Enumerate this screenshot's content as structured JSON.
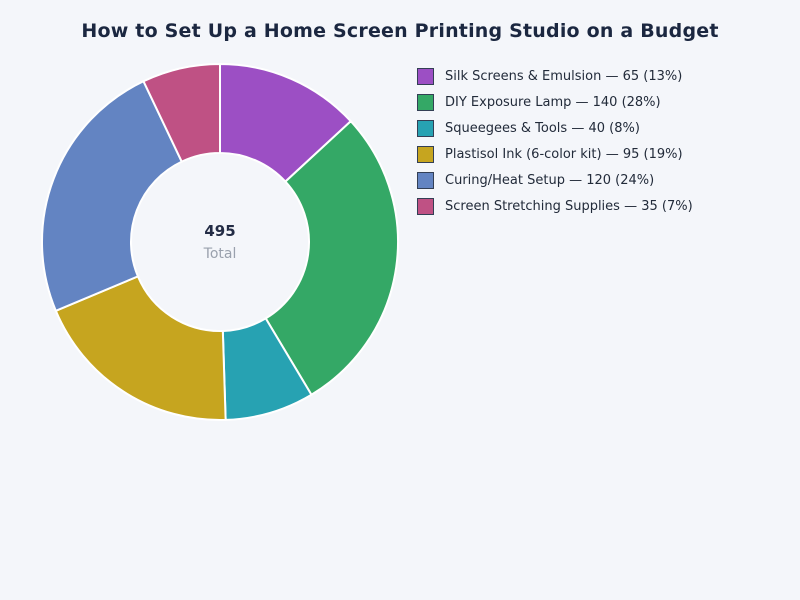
{
  "colors": {
    "background": "#f4f6fa",
    "title_text": "#1b2740",
    "legend_text": "#222b3a",
    "total_value_text": "#232c45",
    "total_label_text": "#9aa1ad",
    "swatch_border": "#333f55",
    "slice_separator": "#ffffff"
  },
  "chart_data": {
    "type": "pie",
    "subtype": "donut",
    "title": "How to Set Up a Home Screen Printing Studio on a Budget",
    "total_value": "495",
    "total_label": "Total",
    "legend_position": "right",
    "start_angle_deg": 0,
    "direction": "clockwise",
    "donut_hole_ratio": 0.5,
    "segments": [
      {
        "label": "Silk Screens & Emulsion",
        "value": 65,
        "percent": "13%",
        "color": "#9c4fc4",
        "legend_text": "Silk Screens & Emulsion — 65 (13%)"
      },
      {
        "label": "DIY Exposure Lamp",
        "value": 140,
        "percent": "28%",
        "color": "#34a866",
        "legend_text": "DIY Exposure Lamp — 140 (28%)"
      },
      {
        "label": "Squeegees & Tools",
        "value": 40,
        "percent": "8%",
        "color": "#27a2b2",
        "legend_text": "Squeegees & Tools — 40 (8%)"
      },
      {
        "label": "Plastisol Ink (6-color kit)",
        "value": 95,
        "percent": "19%",
        "color": "#c6a51f",
        "legend_text": "Plastisol Ink (6-color kit) — 95 (19%)"
      },
      {
        "label": "Curing/Heat Setup",
        "value": 120,
        "percent": "24%",
        "color": "#6384c2",
        "legend_text": "Curing/Heat Setup — 120 (24%)"
      },
      {
        "label": "Screen Stretching Supplies",
        "value": 35,
        "percent": "7%",
        "color": "#bf5184",
        "legend_text": "Screen Stretching Supplies — 35 (7%)"
      }
    ]
  }
}
